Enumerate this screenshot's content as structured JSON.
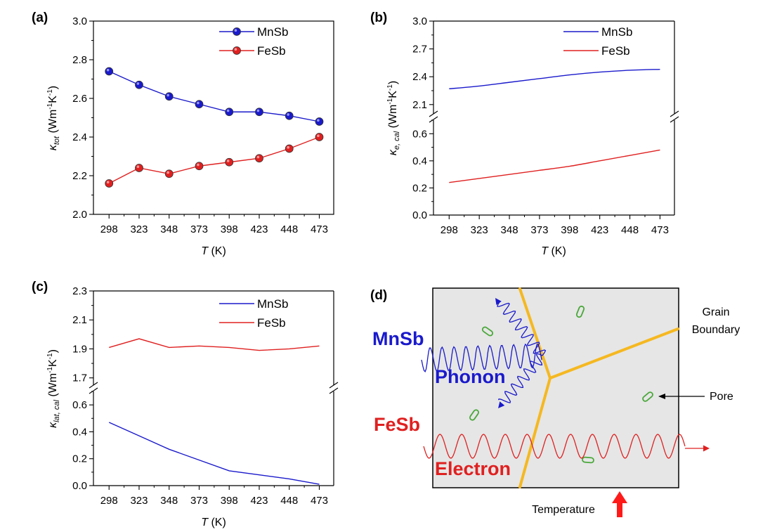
{
  "figure": {
    "panel_labels": [
      "(a)",
      "(b)",
      "(c)",
      "(d)"
    ],
    "colors": {
      "mnsb": "#1a1acc",
      "fesb": "#e02020",
      "boundary": "#f5b820",
      "pore": "#4aa83a",
      "arrow": "#ff1a1a"
    }
  },
  "chart_data": [
    {
      "id": "a",
      "type": "line",
      "markers": true,
      "xlabel": {
        "symbol": "T",
        "unit": " (K)"
      },
      "ylabel": {
        "kappa": "κ",
        "sub": "tot",
        "unit_pre": " (Wm",
        "e1": "-1",
        "mid": "K",
        "e2": "-1",
        "unit_post": ")"
      },
      "categories": [
        "298",
        "323",
        "348",
        "373",
        "398",
        "423",
        "448",
        "473"
      ],
      "x": [
        298,
        323,
        348,
        373,
        398,
        423,
        448,
        473
      ],
      "xlim": [
        285,
        485
      ],
      "ylim": [
        2.0,
        3.0
      ],
      "yticks": [
        "2.0",
        "2.2",
        "2.4",
        "2.6",
        "2.8",
        "3.0"
      ],
      "legend_position": "top-right",
      "series": [
        {
          "name": "MnSb",
          "color": "#1a1acc",
          "values": [
            2.74,
            2.67,
            2.61,
            2.57,
            2.53,
            2.53,
            2.51,
            2.48
          ]
        },
        {
          "name": "FeSb",
          "color": "#e02020",
          "values": [
            2.16,
            2.24,
            2.21,
            2.25,
            2.27,
            2.29,
            2.34,
            2.4
          ]
        }
      ]
    },
    {
      "id": "b",
      "type": "line",
      "broken_axis": true,
      "xlabel": {
        "symbol": "T",
        "unit": " (K)"
      },
      "ylabel": {
        "kappa": "κ",
        "sub": "e, cal",
        "unit_pre": " (Wm",
        "e1": "-1",
        "mid": "K",
        "e2": "-1",
        "unit_post": ")"
      },
      "categories": [
        "298",
        "323",
        "348",
        "373",
        "398",
        "423",
        "448",
        "473"
      ],
      "x": [
        298,
        323,
        348,
        373,
        398,
        423,
        448,
        473
      ],
      "xlim": [
        285,
        485
      ],
      "upper_ylim": [
        2.0,
        3.0
      ],
      "upper_yticks": [
        "2.1",
        "2.4",
        "2.7",
        "3.0"
      ],
      "lower_ylim": [
        0.0,
        0.7
      ],
      "lower_yticks": [
        "0.0",
        "0.2",
        "0.4",
        "0.6"
      ],
      "legend_position": "top-right",
      "series": [
        {
          "name": "MnSb",
          "color": "#1a1acc",
          "values": [
            2.27,
            2.3,
            2.34,
            2.38,
            2.42,
            2.45,
            2.47,
            2.48
          ]
        },
        {
          "name": "FeSb",
          "color": "#e02020",
          "values": [
            0.24,
            0.27,
            0.3,
            0.33,
            0.36,
            0.4,
            0.44,
            0.48
          ]
        }
      ]
    },
    {
      "id": "c",
      "type": "line",
      "broken_axis": true,
      "xlabel": {
        "symbol": "T",
        "unit": " (K)"
      },
      "ylabel": {
        "kappa": "κ",
        "sub": "lat, cal",
        "unit_pre": " (Wm",
        "e1": "-1",
        "mid": "K",
        "e2": "-1",
        "unit_post": ")"
      },
      "categories": [
        "298",
        "323",
        "348",
        "373",
        "398",
        "423",
        "448",
        "473"
      ],
      "x": [
        298,
        323,
        348,
        373,
        398,
        423,
        448,
        473
      ],
      "xlim": [
        285,
        485
      ],
      "upper_ylim": [
        1.65,
        2.3
      ],
      "upper_yticks": [
        "1.7",
        "1.9",
        "2.1",
        "2.3"
      ],
      "lower_ylim": [
        0.0,
        0.7
      ],
      "lower_yticks": [
        "0.0",
        "0.2",
        "0.4",
        "0.6"
      ],
      "legend_position": "top-right",
      "series": [
        {
          "name": "MnSb",
          "color": "#1a1acc",
          "values": [
            0.47,
            0.37,
            0.27,
            0.19,
            0.11,
            0.08,
            0.05,
            0.01
          ]
        },
        {
          "name": "FeSb",
          "color": "#e02020",
          "values": [
            1.91,
            1.97,
            1.91,
            1.92,
            1.91,
            1.89,
            1.9,
            1.92
          ]
        }
      ]
    }
  ],
  "diagram": {
    "labels": {
      "mnsb": "MnSb",
      "phonon": "Phonon",
      "fesb": "FeSb",
      "electron": "Electron",
      "grain_line1": "Grain",
      "grain_line2": "Boundary",
      "pore": "Pore",
      "temperature": "Temperature"
    }
  }
}
